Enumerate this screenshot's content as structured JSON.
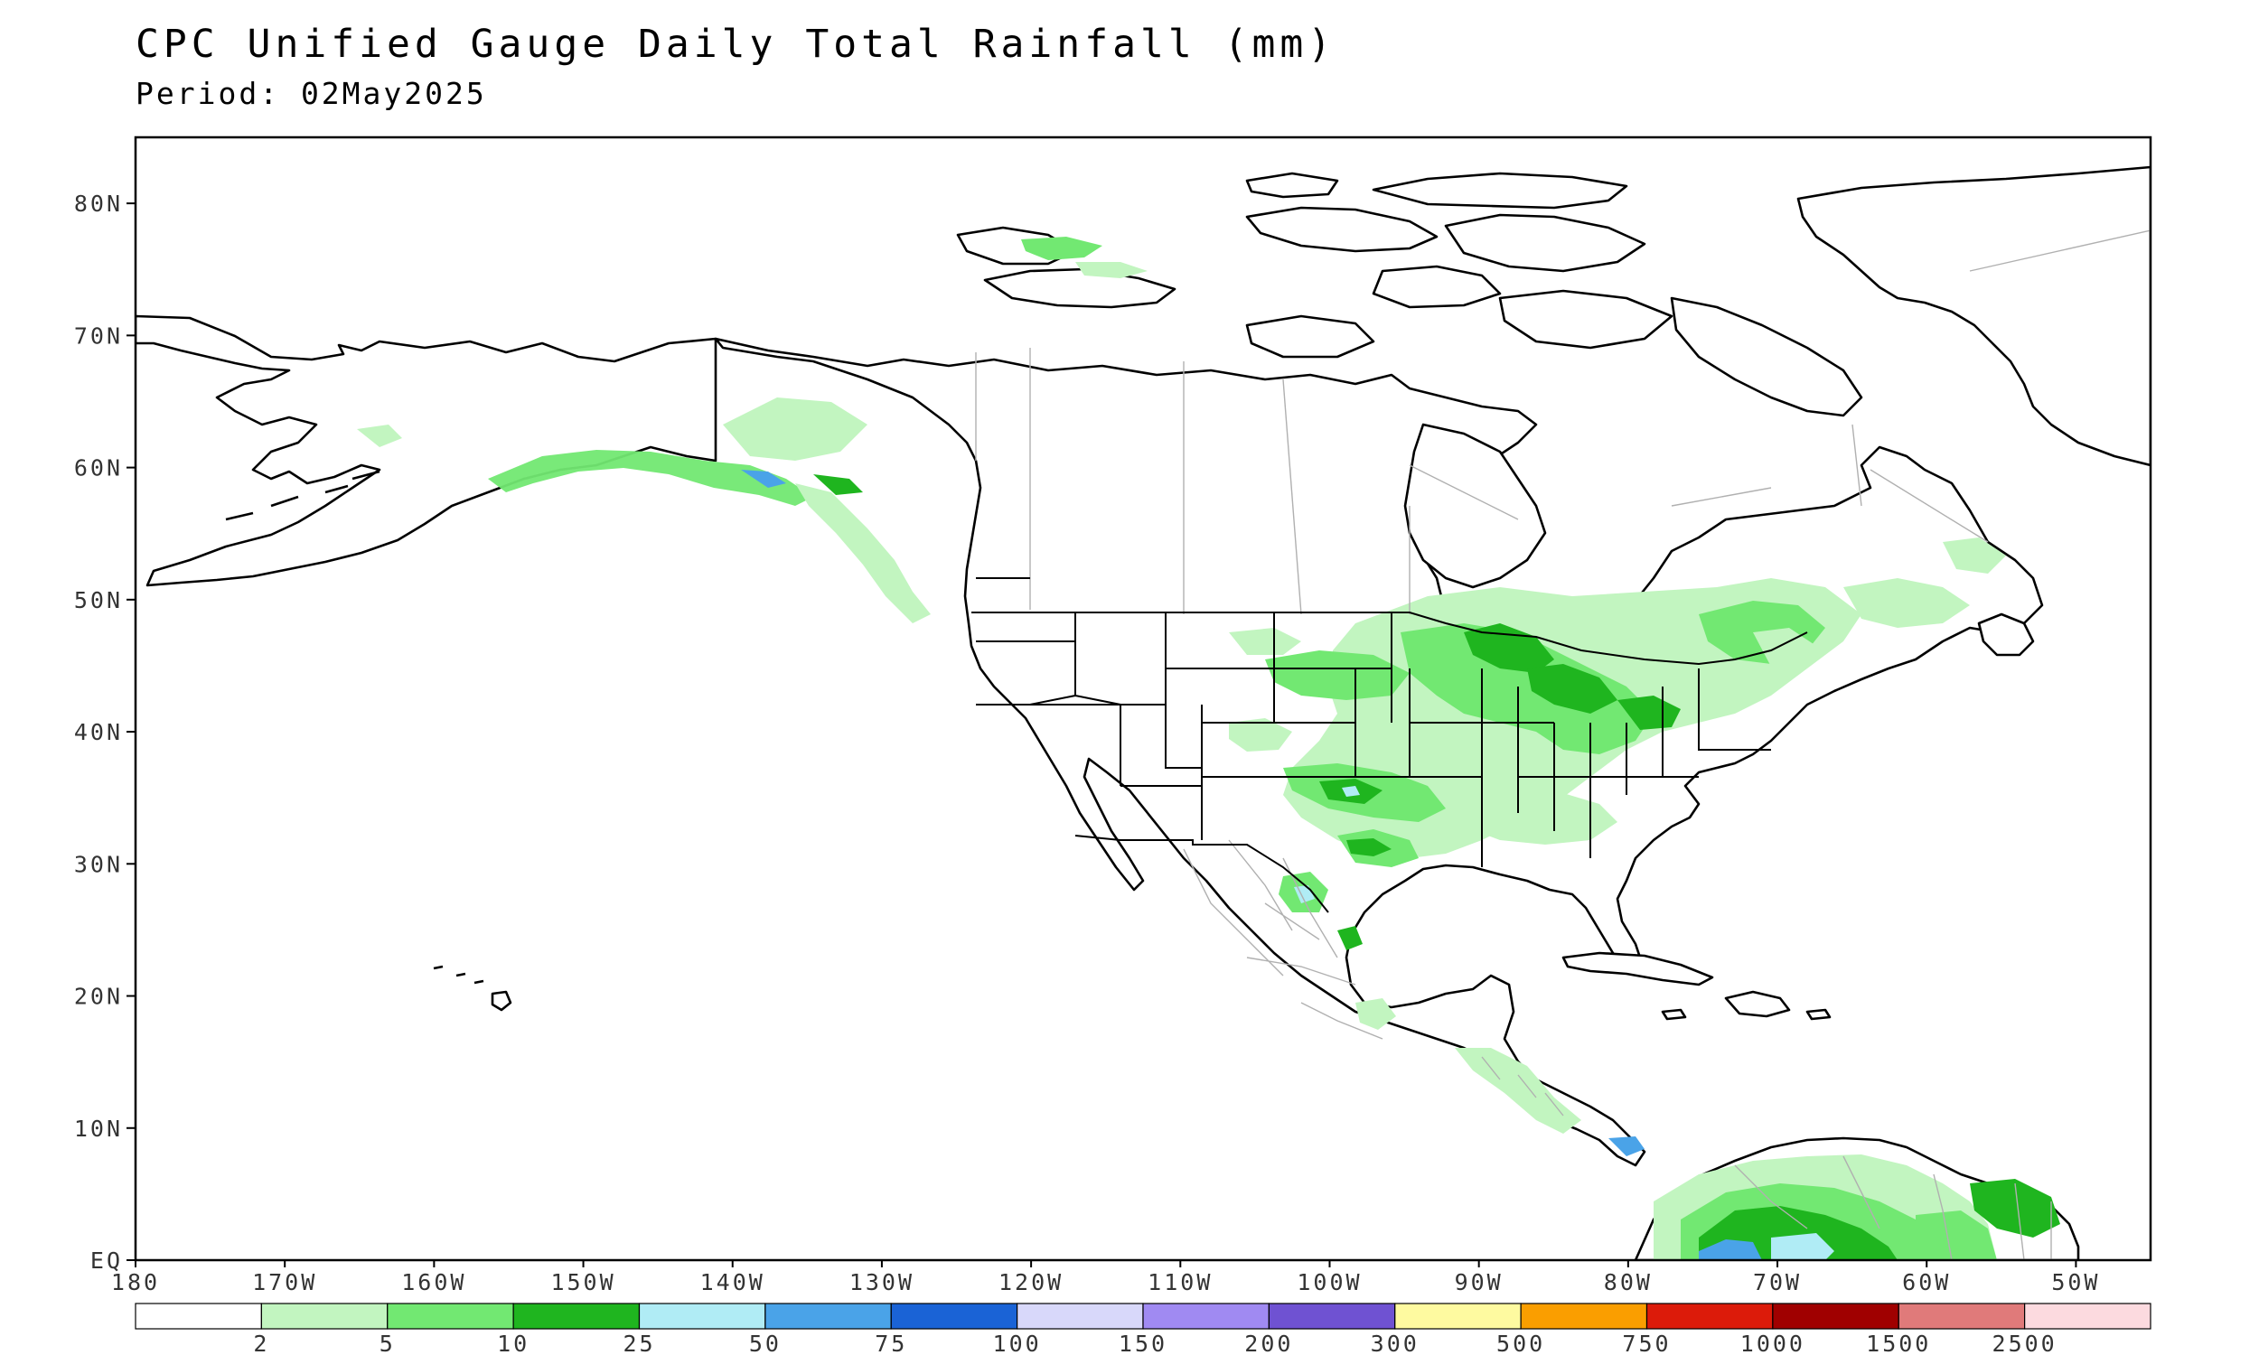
{
  "header": {
    "title": "CPC Unified Gauge Daily Total Rainfall (mm)",
    "period": "Period: 02May2025"
  },
  "map": {
    "lon_range": [
      -180,
      -45
    ],
    "lat_range": [
      0,
      85
    ],
    "lat_ticks": [
      {
        "value": 80,
        "label": "80N"
      },
      {
        "value": 70,
        "label": "70N"
      },
      {
        "value": 60,
        "label": "60N"
      },
      {
        "value": 50,
        "label": "50N"
      },
      {
        "value": 40,
        "label": "40N"
      },
      {
        "value": 30,
        "label": "30N"
      },
      {
        "value": 20,
        "label": "20N"
      },
      {
        "value": 10,
        "label": "10N"
      },
      {
        "value": 0,
        "label": "EQ"
      }
    ],
    "lon_ticks": [
      {
        "value": -180,
        "label": "180"
      },
      {
        "value": -170,
        "label": "170W"
      },
      {
        "value": -160,
        "label": "160W"
      },
      {
        "value": -150,
        "label": "150W"
      },
      {
        "value": -140,
        "label": "140W"
      },
      {
        "value": -130,
        "label": "130W"
      },
      {
        "value": -120,
        "label": "120W"
      },
      {
        "value": -110,
        "label": "110W"
      },
      {
        "value": -100,
        "label": "100W"
      },
      {
        "value": -90,
        "label": "90W"
      },
      {
        "value": -80,
        "label": "80W"
      },
      {
        "value": -70,
        "label": "70W"
      },
      {
        "value": -60,
        "label": "60W"
      },
      {
        "value": -50,
        "label": "50W"
      }
    ],
    "land_color": "#ffffff",
    "coast_color": "#000000",
    "border_color": "#b0b0b0"
  },
  "legend": {
    "colors": [
      "#ffffff",
      "#c2f5c0",
      "#72e872",
      "#1fb51f",
      "#b0ecf5",
      "#4aa3e8",
      "#1a63d6",
      "#d8d8fa",
      "#a08af2",
      "#6f52d2",
      "#fefaa0",
      "#fa9e00",
      "#dc1b0a",
      "#a00000",
      "#e07a7a",
      "#fcdadf"
    ],
    "labels": [
      "2",
      "5",
      "10",
      "25",
      "50",
      "75",
      "100",
      "150",
      "200",
      "300",
      "500",
      "750",
      "1000",
      "1500",
      "2500"
    ]
  }
}
